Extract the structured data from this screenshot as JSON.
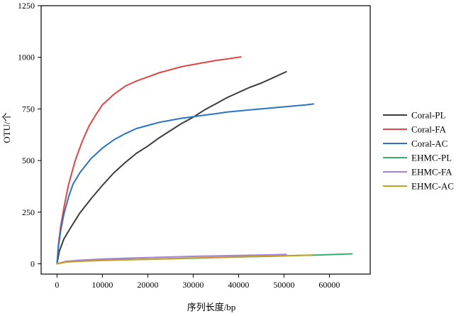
{
  "chart_data": {
    "type": "line",
    "title": "",
    "xlabel": "序列长度/bp",
    "ylabel": "OTU/个",
    "xlim": [
      -3500,
      69000
    ],
    "ylim": [
      -50,
      1250
    ],
    "xticks": [
      0,
      10000,
      20000,
      30000,
      40000,
      50000,
      60000
    ],
    "yticks": [
      0,
      250,
      500,
      750,
      1000,
      1250
    ],
    "xtick_labels": [
      "0",
      "10000",
      "20000",
      "30000",
      "40000",
      "50000",
      "60000"
    ],
    "ytick_labels": [
      "0",
      "250",
      "500",
      "750",
      "1000",
      "1250"
    ],
    "grid": false,
    "legend_position": "right",
    "series": [
      {
        "name": "Coral-PL",
        "color": "#3c3c3c",
        "points": [
          [
            0,
            0
          ],
          [
            500,
            60
          ],
          [
            1500,
            120
          ],
          [
            3000,
            175
          ],
          [
            5000,
            245
          ],
          [
            7500,
            315
          ],
          [
            10000,
            380
          ],
          [
            12500,
            440
          ],
          [
            15000,
            490
          ],
          [
            17500,
            535
          ],
          [
            20000,
            570
          ],
          [
            22500,
            610
          ],
          [
            25000,
            645
          ],
          [
            27500,
            680
          ],
          [
            30000,
            710
          ],
          [
            32500,
            745
          ],
          [
            35000,
            775
          ],
          [
            37500,
            805
          ],
          [
            40000,
            830
          ],
          [
            42500,
            855
          ],
          [
            45000,
            875
          ],
          [
            47500,
            900
          ],
          [
            50500,
            930
          ]
        ]
      },
      {
        "name": "Coral-FA",
        "color": "#e04545",
        "points": [
          [
            0,
            0
          ],
          [
            300,
            90
          ],
          [
            800,
            180
          ],
          [
            1500,
            270
          ],
          [
            2500,
            380
          ],
          [
            4000,
            500
          ],
          [
            5500,
            590
          ],
          [
            7000,
            665
          ],
          [
            8500,
            720
          ],
          [
            10000,
            770
          ],
          [
            12500,
            820
          ],
          [
            15000,
            860
          ],
          [
            17500,
            885
          ],
          [
            20000,
            905
          ],
          [
            22500,
            925
          ],
          [
            25000,
            940
          ],
          [
            27500,
            955
          ],
          [
            30000,
            965
          ],
          [
            32500,
            975
          ],
          [
            35000,
            985
          ],
          [
            37500,
            992
          ],
          [
            40500,
            1002
          ]
        ]
      },
      {
        "name": "Coral-AC",
        "color": "#2a72c2",
        "points": [
          [
            0,
            0
          ],
          [
            300,
            80
          ],
          [
            800,
            160
          ],
          [
            1500,
            240
          ],
          [
            2500,
            320
          ],
          [
            3500,
            385
          ],
          [
            5000,
            440
          ],
          [
            7500,
            510
          ],
          [
            10000,
            560
          ],
          [
            12500,
            600
          ],
          [
            15000,
            630
          ],
          [
            17500,
            655
          ],
          [
            20000,
            670
          ],
          [
            22500,
            685
          ],
          [
            25000,
            695
          ],
          [
            27500,
            705
          ],
          [
            30000,
            712
          ],
          [
            32500,
            720
          ],
          [
            35000,
            727
          ],
          [
            37500,
            735
          ],
          [
            40000,
            740
          ],
          [
            42500,
            745
          ],
          [
            45000,
            750
          ],
          [
            47500,
            755
          ],
          [
            50000,
            760
          ],
          [
            52500,
            765
          ],
          [
            55000,
            770
          ],
          [
            56500,
            774
          ]
        ]
      },
      {
        "name": "EHMC-PL",
        "color": "#3aac6e",
        "points": [
          [
            0,
            0
          ],
          [
            2000,
            10
          ],
          [
            5000,
            14
          ],
          [
            10000,
            18
          ],
          [
            20000,
            22
          ],
          [
            30000,
            27
          ],
          [
            40000,
            33
          ],
          [
            50000,
            38
          ],
          [
            58000,
            43
          ],
          [
            65000,
            48
          ]
        ]
      },
      {
        "name": "EHMC-FA",
        "color": "#a47fe0",
        "points": [
          [
            0,
            0
          ],
          [
            2000,
            12
          ],
          [
            5000,
            17
          ],
          [
            10000,
            23
          ],
          [
            20000,
            30
          ],
          [
            30000,
            36
          ],
          [
            40000,
            40
          ],
          [
            50500,
            45
          ]
        ]
      },
      {
        "name": "EHMC-AC",
        "color": "#c8a020",
        "points": [
          [
            0,
            0
          ],
          [
            2000,
            8
          ],
          [
            5000,
            12
          ],
          [
            10000,
            16
          ],
          [
            20000,
            22
          ],
          [
            30000,
            28
          ],
          [
            40000,
            34
          ],
          [
            50000,
            39
          ],
          [
            56000,
            42
          ]
        ]
      }
    ]
  }
}
